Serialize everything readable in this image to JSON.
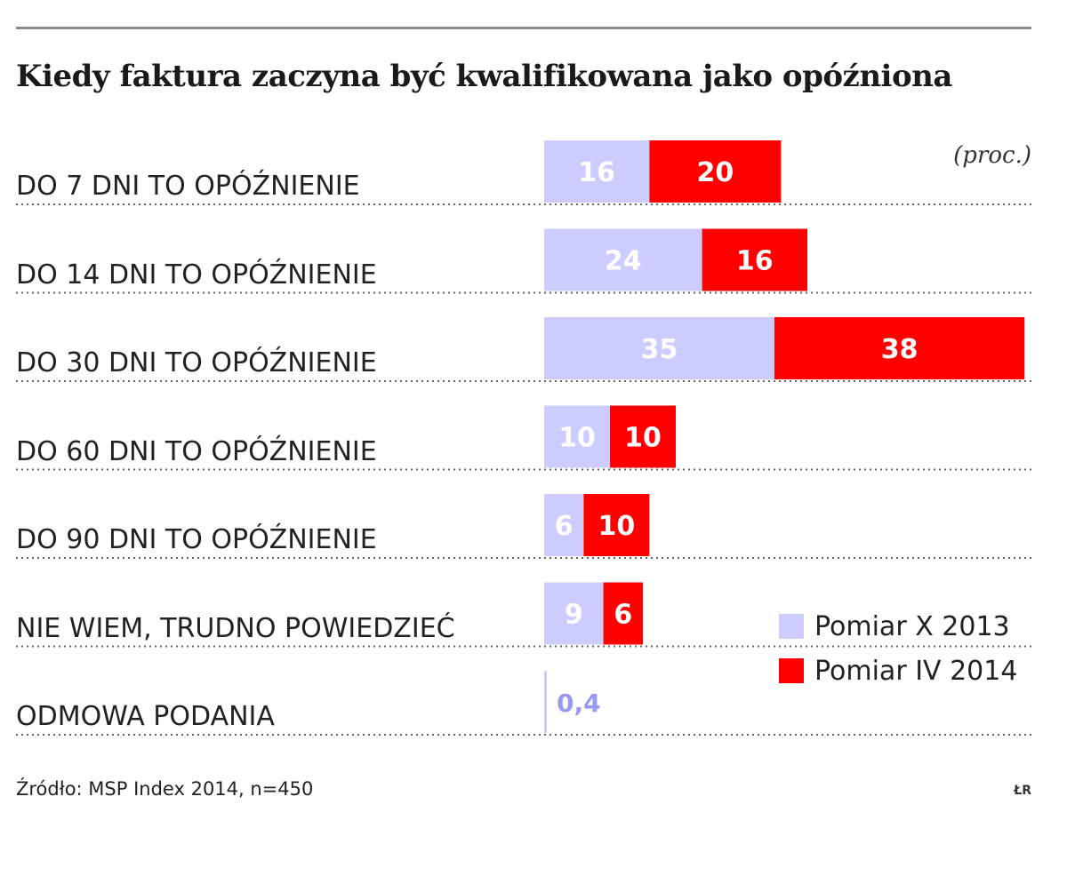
{
  "chart_data": {
    "type": "bar",
    "title": "Kiedy faktura zaczyna być kwalifikowana jako opóźniona",
    "unit_label": "(proc.)",
    "categories": [
      "DO 7 DNI TO OPÓŹNIENIE",
      "DO 14 DNI TO OPÓŹNIENIE",
      "DO 30 DNI TO OPÓŹNIENIE",
      "DO 60 DNI TO OPÓŹNIENIE",
      "DO 90 DNI TO OPÓŹNIENIE",
      "NIE WIEM, TRUDNO POWIEDZIEĆ",
      "ODMOWA PODANIA"
    ],
    "series": [
      {
        "name": "Pomiar X 2013",
        "color": "#ccccff",
        "values": [
          16,
          24,
          35,
          10,
          6,
          9,
          0.4
        ],
        "labels": [
          "16",
          "24",
          "35",
          "10",
          "6",
          "9",
          "0,4"
        ]
      },
      {
        "name": "Pomiar IV 2014",
        "color": "#ff0000",
        "values": [
          20,
          16,
          38,
          10,
          10,
          6,
          0
        ],
        "labels": [
          "20",
          "16",
          "38",
          "10",
          "10",
          "6",
          ""
        ]
      }
    ],
    "stacked": true,
    "orientation": "horizontal",
    "legend_position": "bottom-right",
    "grid": false,
    "source": "Źródło: MSP Index 2014, n=450",
    "logo": "ŁR"
  }
}
